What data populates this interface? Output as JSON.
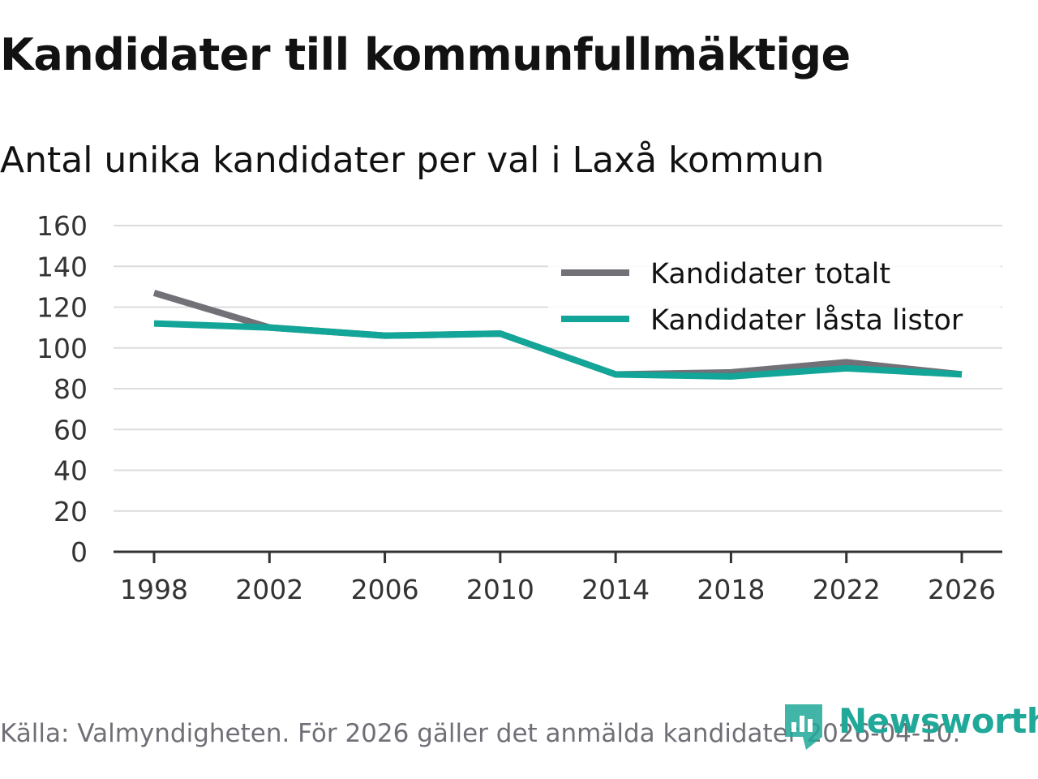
{
  "header": {
    "title": "Kandidater till kommunfullmäktige",
    "subtitle": "Antal unika kandidater per val i Laxå kommun"
  },
  "chart_data": {
    "type": "line",
    "title": "Kandidater till kommunfullmäktige",
    "subtitle": "Antal unika kandidater per val i Laxå kommun",
    "xlabel": "",
    "ylabel": "",
    "x": [
      1998,
      2002,
      2006,
      2010,
      2014,
      2018,
      2022,
      2026
    ],
    "ylim": [
      0,
      160
    ],
    "yticks": [
      0,
      20,
      40,
      60,
      80,
      100,
      120,
      140,
      160
    ],
    "grid": true,
    "legend_position": "top-right",
    "series": [
      {
        "name": "Kandidater totalt",
        "color": "#727178",
        "values": [
          127,
          110,
          106,
          107,
          87,
          88,
          93,
          87
        ]
      },
      {
        "name": "Kandidater låsta listor",
        "color": "#12a598",
        "values": [
          112,
          110,
          106,
          107,
          87,
          86,
          90,
          87
        ]
      }
    ]
  },
  "footer": {
    "source": "Källa: Valmyndigheten. För 2026 gäller det anmälda kandidater 2026-04-10.",
    "logo_text": "Newsworthy",
    "logo_color": "#20a898"
  }
}
